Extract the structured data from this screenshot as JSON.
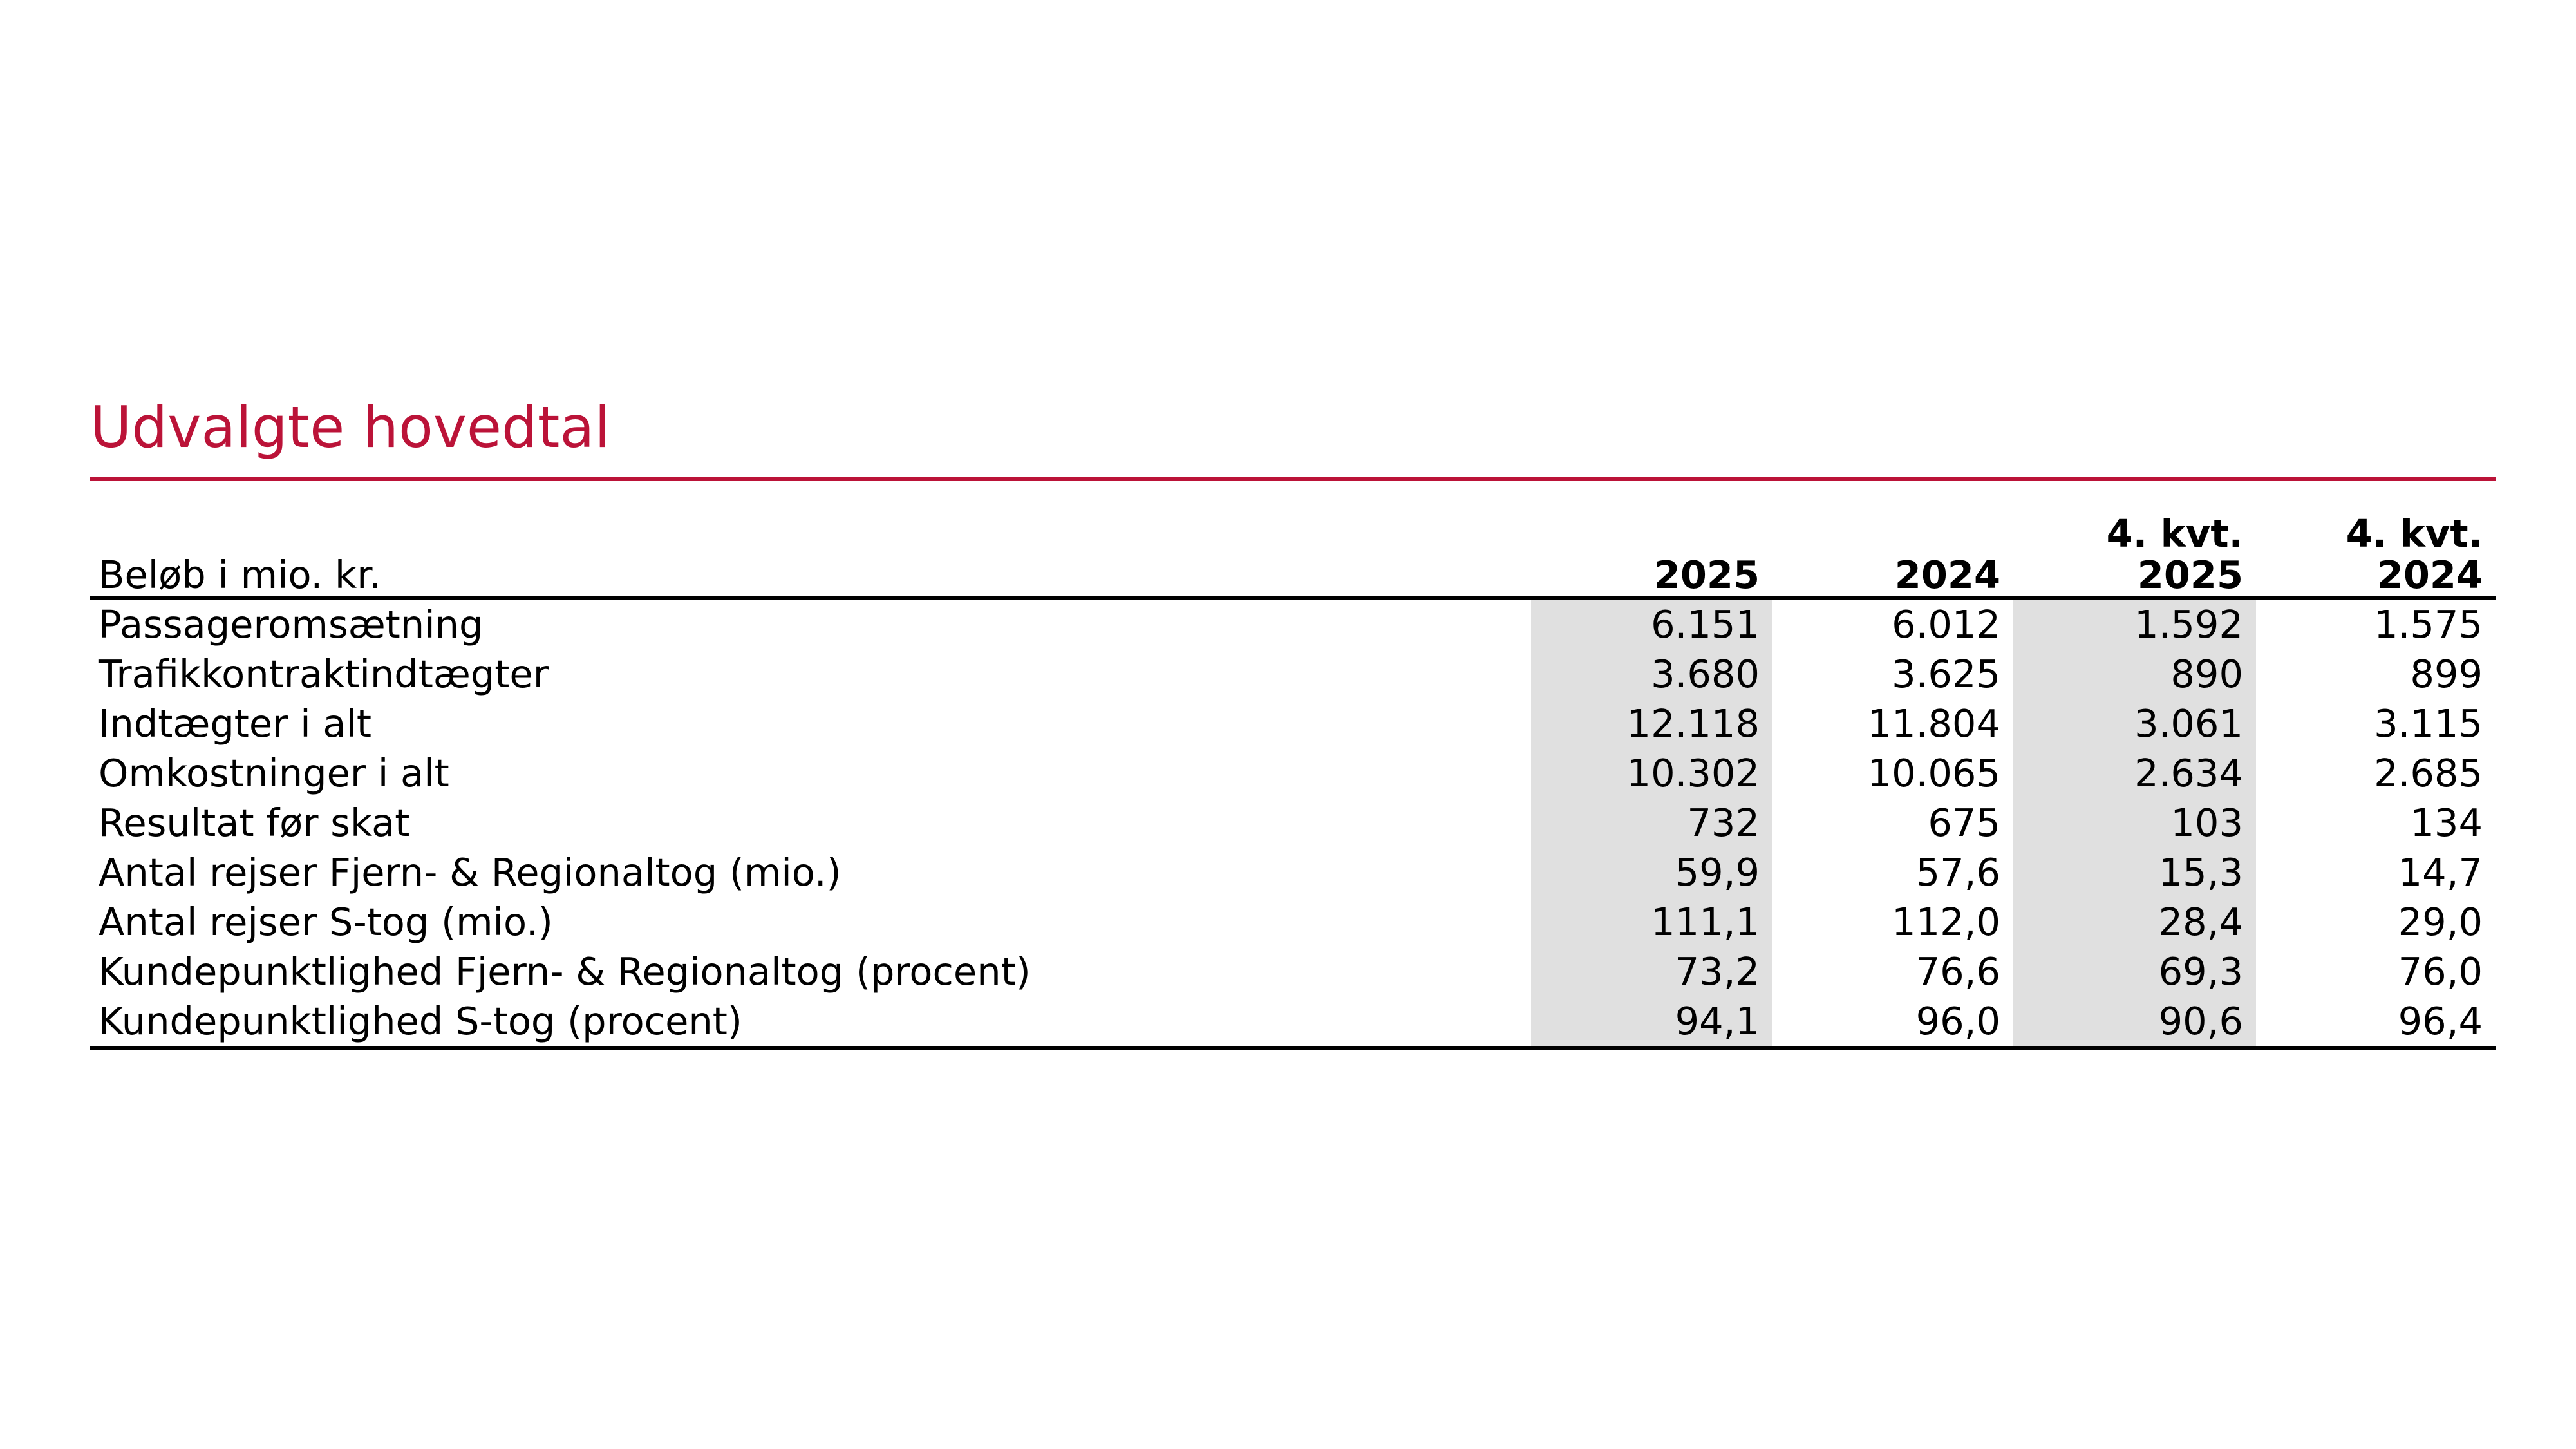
{
  "colors": {
    "accent_red": "#bb1338",
    "shade_gray": "#e0e0e0",
    "text_black": "#000000",
    "background": "#ffffff"
  },
  "title": "Udvalgte hovedtal",
  "table": {
    "unit_label": "Beløb i mio. kr.",
    "columns": [
      {
        "line1": "",
        "line2": "2025",
        "shaded": true
      },
      {
        "line1": "",
        "line2": "2024",
        "shaded": false
      },
      {
        "line1": "4. kvt.",
        "line2": "2025",
        "shaded": true
      },
      {
        "line1": "4. kvt.",
        "line2": "2024",
        "shaded": false
      }
    ],
    "rows": [
      {
        "label": "Passageromsætning",
        "values": [
          "6.151",
          "6.012",
          "1.592",
          "1.575"
        ]
      },
      {
        "label": "Trafikkontraktindtægter",
        "values": [
          "3.680",
          "3.625",
          "890",
          "899"
        ]
      },
      {
        "label": "Indtægter i alt",
        "values": [
          "12.118",
          "11.804",
          "3.061",
          "3.115"
        ]
      },
      {
        "label": "Omkostninger i alt",
        "values": [
          "10.302",
          "10.065",
          "2.634",
          "2.685"
        ]
      },
      {
        "label": "Resultat før skat",
        "values": [
          "732",
          "675",
          "103",
          "134"
        ]
      },
      {
        "label": "Antal rejser Fjern- & Regionaltog (mio.)",
        "values": [
          "59,9",
          "57,6",
          "15,3",
          "14,7"
        ]
      },
      {
        "label": "Antal rejser S-tog (mio.)",
        "values": [
          "111,1",
          "112,0",
          "28,4",
          "29,0"
        ]
      },
      {
        "label": "Kundepunktlighed Fjern- & Regionaltog (procent)",
        "values": [
          "73,2",
          "76,6",
          "69,3",
          "76,0"
        ]
      },
      {
        "label": "Kundepunktlighed S-tog (procent)",
        "values": [
          "94,1",
          "96,0",
          "90,6",
          "96,4"
        ]
      }
    ]
  }
}
